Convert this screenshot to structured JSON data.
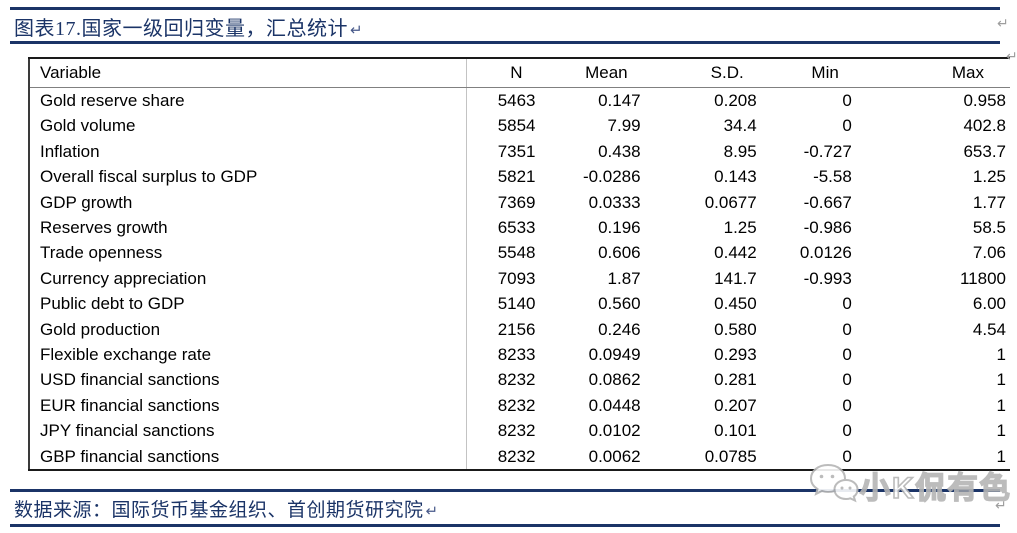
{
  "header_bar": {
    "title": "图表17.国家一级回归变量，汇总统计"
  },
  "table": {
    "columns": [
      "Variable",
      "N",
      "Mean",
      "S.D.",
      "Min",
      "Max"
    ],
    "rows": [
      [
        "Gold reserve share",
        "5463",
        "0.147",
        "0.208",
        "0",
        "0.958"
      ],
      [
        "Gold volume",
        "5854",
        "7.99",
        "34.4",
        "0",
        "402.8"
      ],
      [
        "Inflation",
        "7351",
        "0.438",
        "8.95",
        "-0.727",
        "653.7"
      ],
      [
        "Overall fiscal surplus to GDP",
        "5821",
        "-0.0286",
        "0.143",
        "-5.58",
        "1.25"
      ],
      [
        "GDP growth",
        "7369",
        "0.0333",
        "0.0677",
        "-0.667",
        "1.77"
      ],
      [
        "Reserves growth",
        "6533",
        "0.196",
        "1.25",
        "-0.986",
        "58.5"
      ],
      [
        "Trade openness",
        "5548",
        "0.606",
        "0.442",
        "0.0126",
        "7.06"
      ],
      [
        "Currency appreciation",
        "7093",
        "1.87",
        "141.7",
        "-0.993",
        "11800"
      ],
      [
        "Public debt to GDP",
        "5140",
        "0.560",
        "0.450",
        "0",
        "6.00"
      ],
      [
        "Gold production",
        "2156",
        "0.246",
        "0.580",
        "0",
        "4.54"
      ],
      [
        "Flexible exchange rate",
        "8233",
        "0.0949",
        "0.293",
        "0",
        "1"
      ],
      [
        "USD financial sanctions",
        "8232",
        "0.0862",
        "0.281",
        "0",
        "1"
      ],
      [
        "EUR financial sanctions",
        "8232",
        "0.0448",
        "0.207",
        "0",
        "1"
      ],
      [
        "JPY financial sanctions",
        "8232",
        "0.0102",
        "0.101",
        "0",
        "1"
      ],
      [
        "GBP financial sanctions",
        "8232",
        "0.0062",
        "0.0785",
        "0",
        "1"
      ]
    ]
  },
  "footer_bar": {
    "source": "数据来源：国际货币基金组织、首创期货研究院"
  },
  "watermark": {
    "text": "小K侃有色",
    "icon": "wechat-chat-bubbles"
  },
  "marks": {
    "return": "↵"
  },
  "colors": {
    "navy": "#1b3467",
    "table_border_dark": "#1a1a1a",
    "header_underline_gray": "#808080",
    "column_divider_gray": "#c3c3c3",
    "return_mark_gray": "#9e9e9e",
    "watermark_gray": "#b5b5b5"
  }
}
